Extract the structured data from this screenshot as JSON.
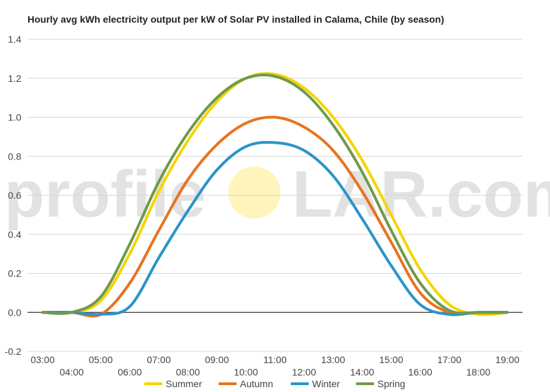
{
  "chart_data": {
    "type": "line",
    "title": "Hourly avg kWh electricity output per kW of Solar PV installed in Calama, Chile (by season)",
    "xlabel": "",
    "ylabel": "",
    "ylim": [
      -0.2,
      1.4
    ],
    "y_ticks": [
      "-0.2",
      "0.0",
      "0.2",
      "0.4",
      "0.6",
      "0.8",
      "1.0",
      "1.2",
      "1.4"
    ],
    "x_tick_labels": [
      "03:00",
      "04:00",
      "05:00",
      "06:00",
      "07:00",
      "08:00",
      "09:00",
      "10:00",
      "11:00",
      "12:00",
      "13:00",
      "14:00",
      "15:00",
      "16:00",
      "17:00",
      "18:00",
      "19:00"
    ],
    "grid": true,
    "legend_position": "bottom",
    "x": [
      3,
      4,
      5,
      6,
      7,
      8,
      9,
      10,
      11,
      12,
      13,
      14,
      15,
      16,
      17,
      18,
      19
    ],
    "series": [
      {
        "name": "Summer",
        "color": "#f5d400",
        "values": [
          0.0,
          0.0,
          0.06,
          0.3,
          0.62,
          0.88,
          1.08,
          1.2,
          1.22,
          1.15,
          1.0,
          0.78,
          0.5,
          0.22,
          0.04,
          -0.01,
          0.0
        ]
      },
      {
        "name": "Autumn",
        "color": "#e8731f",
        "values": [
          0.0,
          0.0,
          -0.01,
          0.15,
          0.42,
          0.68,
          0.86,
          0.97,
          1.0,
          0.95,
          0.83,
          0.62,
          0.36,
          0.1,
          0.0,
          0.0,
          0.0
        ]
      },
      {
        "name": "Winter",
        "color": "#2a94c8",
        "values": [
          0.0,
          0.0,
          -0.01,
          0.03,
          0.28,
          0.52,
          0.73,
          0.85,
          0.87,
          0.83,
          0.7,
          0.48,
          0.24,
          0.04,
          -0.01,
          0.0,
          0.0
        ]
      },
      {
        "name": "Spring",
        "color": "#6f9a4b",
        "values": [
          0.0,
          0.0,
          0.08,
          0.35,
          0.67,
          0.92,
          1.1,
          1.2,
          1.21,
          1.13,
          0.96,
          0.72,
          0.42,
          0.15,
          0.01,
          0.0,
          0.0
        ]
      }
    ]
  },
  "watermark": {
    "text_left": "profile",
    "text_right": "LAR.com",
    "sun_color": "#fff3b0"
  }
}
